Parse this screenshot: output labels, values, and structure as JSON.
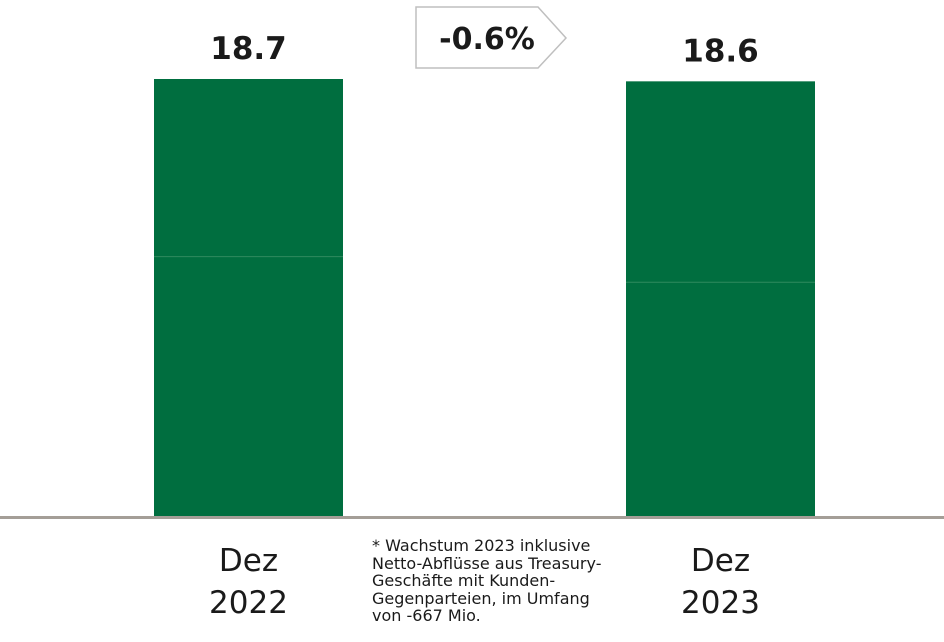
{
  "chart_data": {
    "type": "bar",
    "stacked": true,
    "categories": [
      "Dez\n2022",
      "Dez\n2023"
    ],
    "series": [
      {
        "values": [
          11.1,
          10.0
        ]
      },
      {
        "values": [
          7.6,
          8.6
        ]
      }
    ],
    "totals": [
      "18.7",
      "18.6"
    ],
    "change_label": "-0.6%",
    "ylim": [
      0,
      18.7
    ],
    "colors": {
      "bar": "#006e3f",
      "divider": "#2f8a5f",
      "axis": "#a49e97",
      "arrow_border": "#bfbfbf"
    }
  },
  "footnote": "* Wachstum 2023 inklusive Netto-Abflüsse aus Treasury-Geschäfte mit Kunden-Gegenparteien, im Umfang von -667 Mio."
}
